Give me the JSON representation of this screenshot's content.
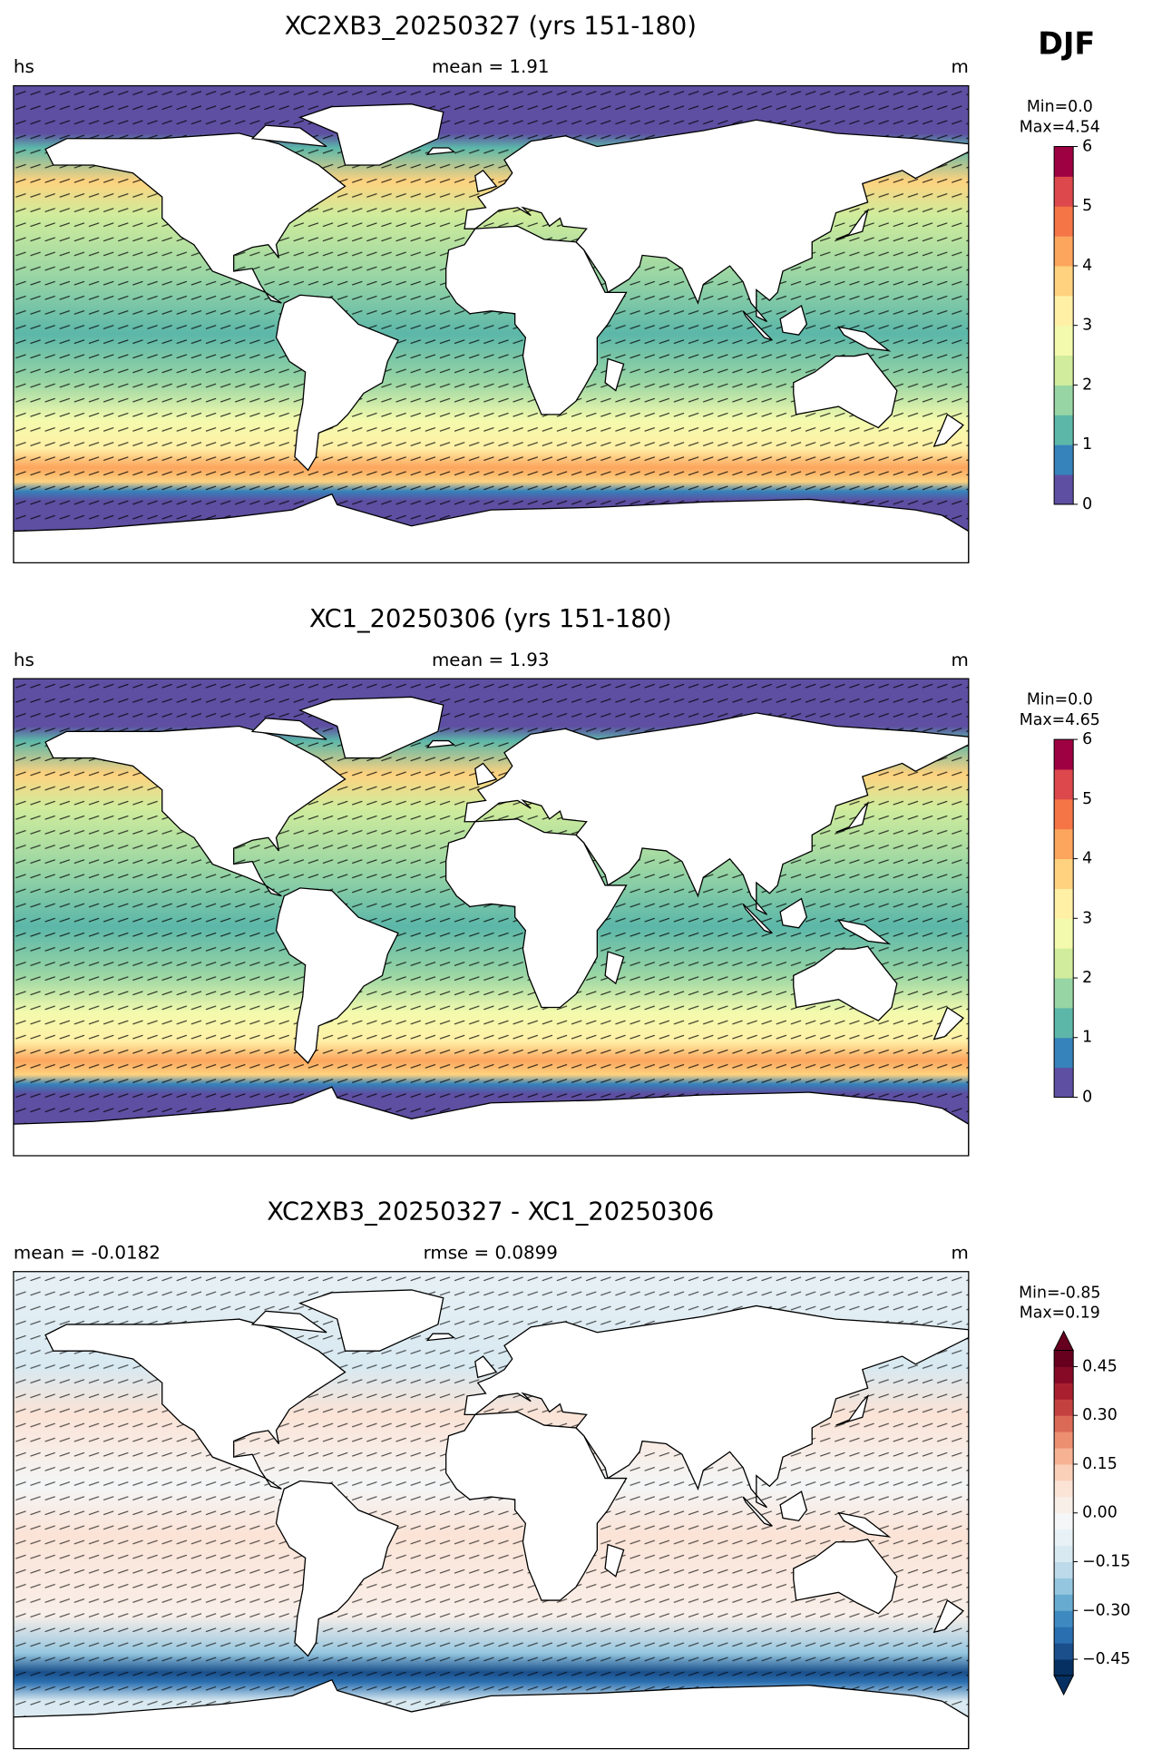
{
  "season": "DJF",
  "panels": [
    {
      "title": "XC2XB3_20250327 (yrs 151-180)",
      "left": "hs",
      "center": "mean = 1.91",
      "right": "m",
      "min_text": "Min=0.0",
      "max_text": "Max=4.54",
      "colorbar": {
        "lim": [
          0,
          6
        ],
        "ticks": [
          0,
          1,
          2,
          3,
          4,
          5,
          6
        ],
        "extend": "neither",
        "colors": [
          "#5e4fa2",
          "#3682ba",
          "#5cb7a9",
          "#98d5a4",
          "#d0ec9c",
          "#f3faad",
          "#fff0a6",
          "#fed27f",
          "#fca55d",
          "#f57547",
          "#dc484c",
          "#9e0142"
        ]
      }
    },
    {
      "title": "XC1_20250306 (yrs 151-180)",
      "left": "hs",
      "center": "mean = 1.93",
      "right": "m",
      "min_text": "Min=0.0",
      "max_text": "Max=4.65",
      "colorbar": {
        "lim": [
          0,
          6
        ],
        "ticks": [
          0,
          1,
          2,
          3,
          4,
          5,
          6
        ],
        "extend": "neither",
        "colors": [
          "#5e4fa2",
          "#3682ba",
          "#5cb7a9",
          "#98d5a4",
          "#d0ec9c",
          "#f3faad",
          "#fff0a6",
          "#fed27f",
          "#fca55d",
          "#f57547",
          "#dc484c",
          "#9e0142"
        ]
      }
    },
    {
      "title": "XC2XB3_20250327 - XC1_20250306",
      "left": "mean = -0.0182",
      "center": "rmse = 0.0899",
      "right": "m",
      "min_text": "Min=-0.85",
      "max_text": "Max=0.19",
      "colorbar": {
        "lim": [
          -0.5,
          0.5
        ],
        "extend": "both",
        "ticks": [
          {
            "value": 0.45,
            "label": "0.45"
          },
          {
            "value": 0.3,
            "label": "0.30"
          },
          {
            "value": 0.15,
            "label": "0.15"
          },
          {
            "value": 0,
            "label": "0.00"
          },
          {
            "value": -0.15,
            "label": "−0.15"
          },
          {
            "value": -0.3,
            "label": "−0.30"
          },
          {
            "value": -0.45,
            "label": "−0.45"
          }
        ],
        "colors": [
          "#053061",
          "#1a4f8b",
          "#2a6fb0",
          "#3e8ac0",
          "#68abd0",
          "#94c6df",
          "#bcdaea",
          "#d8e9f1",
          "#e8f1f5",
          "#f4f6f7",
          "#f9efe9",
          "#fbe3d6",
          "#fbd0b9",
          "#f6b293",
          "#ec8f71",
          "#da6a55",
          "#c3423f",
          "#aa1f2f",
          "#860a26",
          "#67001f"
        ]
      }
    }
  ]
}
